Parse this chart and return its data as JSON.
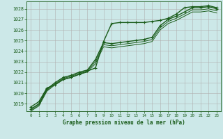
{
  "title": "Graphe pression niveau de la mer (hPa)",
  "bg_color": "#cce8e8",
  "grid_color": "#b0b0b0",
  "line_color": "#1a5c1a",
  "xlim": [
    -0.5,
    23.5
  ],
  "ylim": [
    1018.3,
    1028.7
  ],
  "yticks": [
    1019,
    1020,
    1021,
    1022,
    1023,
    1024,
    1025,
    1026,
    1027,
    1028
  ],
  "xticks": [
    0,
    1,
    2,
    3,
    4,
    5,
    6,
    7,
    8,
    9,
    10,
    11,
    12,
    13,
    14,
    15,
    16,
    17,
    18,
    19,
    20,
    21,
    22,
    23
  ],
  "series": [
    {
      "x": [
        0,
        1,
        2,
        3,
        4,
        5,
        6,
        7,
        8,
        9,
        10,
        11,
        12,
        13,
        14,
        15,
        16,
        17,
        18,
        19,
        20,
        21,
        22,
        23
      ],
      "y": [
        1018.7,
        1019.2,
        1020.5,
        1020.8,
        1021.3,
        1021.5,
        1021.8,
        1022.1,
        1022.4,
        1024.9,
        1026.6,
        1026.7,
        1026.7,
        1026.7,
        1026.7,
        1026.8,
        1026.9,
        1027.1,
        1027.5,
        1028.1,
        1028.2,
        1028.2,
        1028.3,
        1028.1
      ],
      "marker": "+",
      "lw": 1.0,
      "ms": 3.5
    },
    {
      "x": [
        0,
        1,
        2,
        3,
        4,
        5,
        6,
        7,
        8,
        9,
        10,
        11,
        12,
        13,
        14,
        15,
        16,
        17,
        18,
        19,
        20,
        21,
        22,
        23
      ],
      "y": [
        1018.5,
        1019.0,
        1020.4,
        1021.0,
        1021.5,
        1021.7,
        1022.0,
        1022.2,
        1023.2,
        1024.8,
        1024.7,
        1024.8,
        1024.9,
        1025.0,
        1025.1,
        1025.3,
        1026.4,
        1027.0,
        1027.3,
        1027.7,
        1028.1,
        1028.1,
        1028.2,
        1028.0
      ],
      "marker": "+",
      "lw": 1.0,
      "ms": 3.5
    },
    {
      "x": [
        0,
        1,
        2,
        3,
        4,
        5,
        6,
        7,
        8,
        9,
        10,
        11,
        12,
        13,
        14,
        15,
        16,
        17,
        18,
        19,
        20,
        21,
        22,
        23
      ],
      "y": [
        1018.4,
        1018.9,
        1020.3,
        1020.9,
        1021.4,
        1021.6,
        1021.9,
        1022.1,
        1023.0,
        1024.6,
        1024.5,
        1024.6,
        1024.7,
        1024.8,
        1024.9,
        1025.1,
        1026.2,
        1026.8,
        1027.1,
        1027.5,
        1027.9,
        1027.9,
        1028.0,
        1027.8
      ],
      "marker": null,
      "lw": 0.7,
      "ms": 0
    },
    {
      "x": [
        0,
        1,
        2,
        3,
        4,
        5,
        6,
        7,
        8,
        9,
        10,
        11,
        12,
        13,
        14,
        15,
        16,
        17,
        18,
        19,
        20,
        21,
        22,
        23
      ],
      "y": [
        1018.3,
        1018.8,
        1020.2,
        1020.8,
        1021.3,
        1021.5,
        1021.8,
        1022.0,
        1022.8,
        1024.4,
        1024.3,
        1024.4,
        1024.5,
        1024.6,
        1024.7,
        1024.9,
        1026.0,
        1026.6,
        1026.9,
        1027.3,
        1027.7,
        1027.7,
        1027.8,
        1027.6
      ],
      "marker": null,
      "lw": 0.7,
      "ms": 0
    }
  ]
}
